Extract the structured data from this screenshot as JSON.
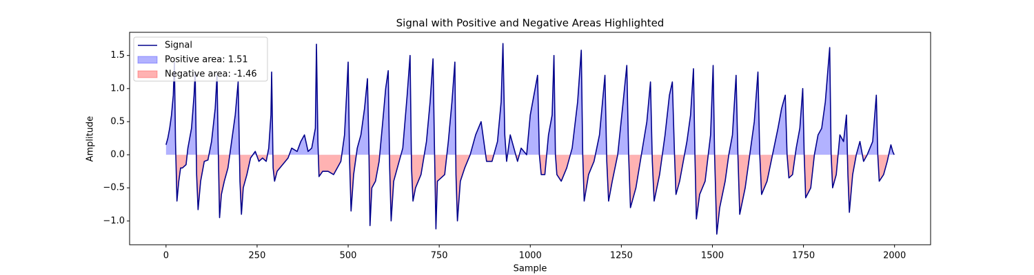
{
  "chart_data": {
    "type": "line",
    "title": "Signal with Positive and Negative Areas Highlighted",
    "xlabel": "Sample",
    "ylabel": "Amplitude",
    "x": [
      0,
      5,
      10,
      15,
      20,
      23,
      26,
      30,
      35,
      40,
      45,
      55,
      60,
      70,
      77,
      80,
      84,
      88,
      95,
      105,
      115,
      125,
      135,
      140,
      143,
      147,
      152,
      160,
      170,
      180,
      190,
      198,
      203,
      207,
      212,
      222,
      232,
      245,
      255,
      265,
      275,
      282,
      288,
      290,
      294,
      298,
      305,
      320,
      335,
      345,
      360,
      370,
      380,
      390,
      400,
      410,
      413,
      417,
      420,
      430,
      445,
      460,
      470,
      480,
      490,
      497,
      500,
      504,
      508,
      515,
      525,
      535,
      545,
      553,
      557,
      560,
      565,
      575,
      585,
      595,
      603,
      610,
      614,
      618,
      625,
      635,
      650,
      662,
      670,
      674,
      678,
      685,
      700,
      715,
      725,
      733,
      737,
      741,
      745,
      755,
      765,
      775,
      785,
      793,
      796,
      800,
      808,
      820,
      835,
      850,
      865,
      880,
      895,
      910,
      920,
      925,
      930,
      935,
      945,
      955,
      965,
      975,
      990,
      1000,
      1010,
      1020,
      1025,
      1030,
      1040,
      1050,
      1060,
      1065,
      1069,
      1073,
      1085,
      1100,
      1115,
      1130,
      1140,
      1144,
      1148,
      1160,
      1175,
      1190,
      1205,
      1210,
      1215,
      1225,
      1240,
      1255,
      1265,
      1270,
      1275,
      1290,
      1305,
      1320,
      1330,
      1335,
      1340,
      1355,
      1370,
      1382,
      1390,
      1396,
      1400,
      1410,
      1430,
      1440,
      1448,
      1452,
      1456,
      1465,
      1480,
      1495,
      1502,
      1506,
      1512,
      1520,
      1535,
      1545,
      1555,
      1565,
      1570,
      1575,
      1590,
      1605,
      1615,
      1625,
      1630,
      1635,
      1650,
      1665,
      1680,
      1690,
      1700,
      1705,
      1710,
      1720,
      1730,
      1740,
      1748,
      1752,
      1756,
      1770,
      1780,
      1790,
      1800,
      1810,
      1822,
      1826,
      1830,
      1840,
      1850,
      1860,
      1868,
      1872,
      1876,
      1885,
      1895,
      1905,
      1915,
      1925,
      1940,
      1950,
      1954,
      1958,
      1970,
      1980,
      1990,
      1995,
      1999
    ],
    "series": [
      {
        "name": "Signal",
        "color": "#00008b",
        "values": [
          0.15,
          0.25,
          0.4,
          0.6,
          0.9,
          1.4,
          0.2,
          -0.7,
          -0.4,
          -0.2,
          -0.2,
          -0.15,
          0.1,
          0.4,
          0.9,
          1.25,
          -0.3,
          -0.83,
          -0.4,
          -0.1,
          -0.08,
          0.2,
          0.7,
          1.2,
          0.2,
          -0.95,
          -0.6,
          -0.4,
          -0.2,
          0.2,
          0.6,
          1.1,
          -0.4,
          -0.9,
          -0.5,
          -0.3,
          -0.05,
          0.05,
          -0.1,
          -0.05,
          -0.1,
          0.1,
          0.6,
          1.25,
          -0.2,
          -0.4,
          -0.25,
          -0.15,
          -0.05,
          0.1,
          0.05,
          0.2,
          0.3,
          0.05,
          0.1,
          0.4,
          1.67,
          0.2,
          -0.33,
          -0.25,
          -0.25,
          -0.3,
          -0.2,
          -0.1,
          0.3,
          1.05,
          1.4,
          -0.1,
          -0.85,
          -0.3,
          0.1,
          0.3,
          0.7,
          1.15,
          0.1,
          -1.07,
          -0.5,
          -0.4,
          -0.1,
          0.5,
          1.0,
          1.27,
          -0.2,
          -1.0,
          -0.4,
          -0.2,
          0.1,
          0.9,
          1.5,
          -0.2,
          -0.7,
          -0.5,
          -0.3,
          0.2,
          0.8,
          1.45,
          0.1,
          -1.12,
          -0.4,
          -0.35,
          -0.3,
          0.2,
          0.8,
          1.4,
          -0.3,
          -1.0,
          -0.4,
          -0.2,
          0.0,
          0.3,
          0.5,
          -0.1,
          -0.1,
          0.2,
          0.8,
          1.68,
          0.3,
          -0.1,
          0.3,
          0.1,
          -0.1,
          0.1,
          0.0,
          0.6,
          0.9,
          1.2,
          0.0,
          -0.3,
          -0.3,
          0.3,
          0.6,
          1.5,
          0.0,
          -0.3,
          -0.4,
          -0.2,
          0.1,
          0.8,
          1.58,
          0.0,
          -0.7,
          -0.3,
          -0.1,
          0.3,
          1.2,
          -0.1,
          -0.7,
          -0.4,
          0.0,
          0.8,
          1.35,
          0.0,
          -0.8,
          -0.5,
          0.0,
          0.5,
          1.1,
          -0.1,
          -0.7,
          -0.3,
          0.3,
          0.9,
          1.1,
          0.0,
          -0.6,
          -0.4,
          0.2,
          0.6,
          1.3,
          0.0,
          -0.97,
          -0.6,
          -0.4,
          0.3,
          1.35,
          0.0,
          -1.2,
          -0.8,
          -0.4,
          0.0,
          0.3,
          1.2,
          0.0,
          -0.9,
          -0.5,
          0.1,
          0.5,
          1.25,
          0.0,
          -0.6,
          -0.4,
          0.0,
          0.4,
          0.7,
          0.9,
          0.0,
          -0.35,
          -0.3,
          0.1,
          0.4,
          1.0,
          0.0,
          -0.65,
          -0.5,
          0.0,
          0.3,
          0.4,
          0.8,
          1.62,
          0.0,
          -0.5,
          -0.3,
          0.3,
          0.2,
          0.6,
          -0.3,
          -0.87,
          -0.3,
          0.0,
          0.2,
          -0.1,
          0.0,
          0.2,
          0.9,
          0.0,
          -0.4,
          -0.3,
          -0.1,
          0.15,
          0.05,
          0.0
        ]
      }
    ],
    "fills": [
      {
        "name": "Positive area: 1.51",
        "color": "#0000ff",
        "side": "positive"
      },
      {
        "name": "Negative area: -1.46",
        "color": "#ff0000",
        "side": "negative"
      }
    ],
    "xlim": [
      -100,
      2099
    ],
    "ylim": [
      -1.36,
      1.85
    ],
    "xticks": [
      0,
      250,
      500,
      750,
      1000,
      1250,
      1500,
      1750,
      2000
    ],
    "yticks": [
      {
        "value": -1.0,
        "label": "−1.0"
      },
      {
        "value": -0.5,
        "label": "−0.5"
      },
      {
        "value": 0.0,
        "label": "0.0"
      },
      {
        "value": 0.5,
        "label": "0.5"
      },
      {
        "value": 1.0,
        "label": "1.0"
      },
      {
        "value": 1.5,
        "label": "1.5"
      }
    ],
    "legend": "upper left"
  }
}
